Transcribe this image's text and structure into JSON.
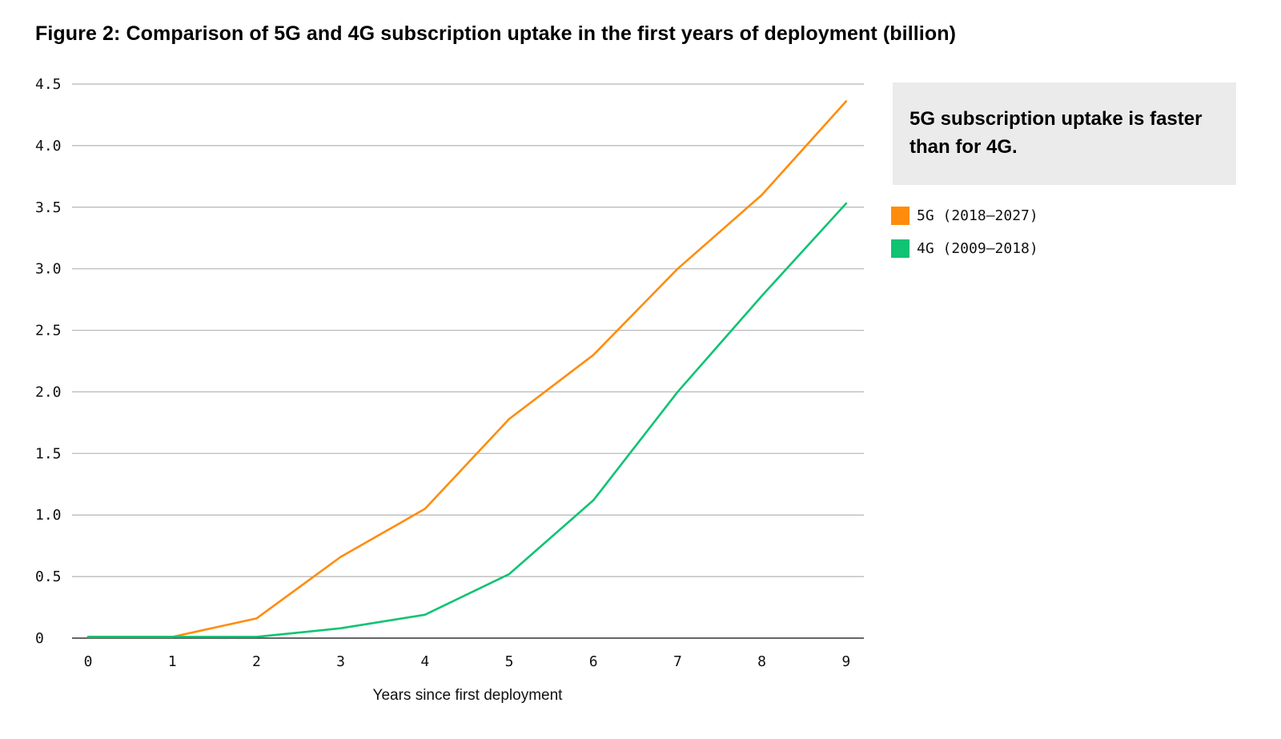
{
  "chart_data": {
    "type": "line",
    "title": "Figure 2: Comparison of 5G and 4G subscription uptake in the first years of deployment (billion)",
    "xlabel": "Years since first deployment",
    "ylabel": "",
    "x": [
      0,
      1,
      2,
      3,
      4,
      5,
      6,
      7,
      8,
      9
    ],
    "x_tick_labels": [
      "0",
      "1",
      "2",
      "3",
      "4",
      "5",
      "6",
      "7",
      "8",
      "9"
    ],
    "y_tick_values": [
      0,
      0.5,
      1.0,
      1.5,
      2.0,
      2.5,
      3.0,
      3.5,
      4.0,
      4.5
    ],
    "y_tick_labels": [
      "0",
      "0.5",
      "1.0",
      "1.5",
      "2.0",
      "2.5",
      "3.0",
      "3.5",
      "4.0",
      "4.5"
    ],
    "ylim": [
      0,
      4.5
    ],
    "grid": true,
    "legend_position": "right",
    "series": [
      {
        "name": "5G (2018–2027)",
        "color": "#ff8c0a",
        "values": [
          0.01,
          0.01,
          0.16,
          0.66,
          1.05,
          1.78,
          2.3,
          3.0,
          3.6,
          4.36
        ]
      },
      {
        "name": "4G (2009–2018)",
        "color": "#0fc373",
        "values": [
          0.01,
          0.01,
          0.01,
          0.08,
          0.19,
          0.52,
          1.12,
          2.0,
          2.78,
          3.53
        ]
      }
    ],
    "callout": "5G subscription uptake is faster than for 4G."
  }
}
